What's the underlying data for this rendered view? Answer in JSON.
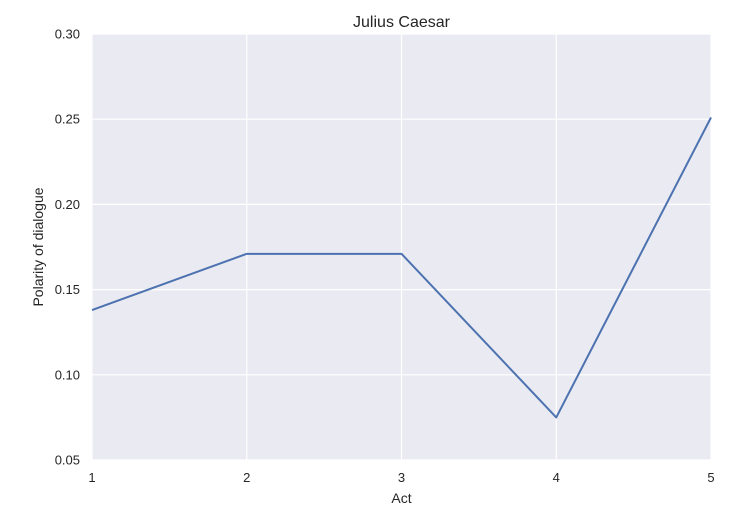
{
  "chart_data": {
    "type": "line",
    "title": "Julius Caesar",
    "xlabel": "Act",
    "ylabel": "Polarity of dialogue",
    "x": [
      1,
      2,
      3,
      4,
      5
    ],
    "series": [
      {
        "values": [
          0.138,
          0.171,
          0.171,
          0.075,
          0.251
        ],
        "color": "#4c72b0"
      }
    ],
    "xlim": [
      1,
      5
    ],
    "ylim": [
      0.05,
      0.3
    ],
    "xticks": [
      "1",
      "2",
      "3",
      "4",
      "5"
    ],
    "yticks": [
      "0.05",
      "0.10",
      "0.15",
      "0.20",
      "0.25",
      "0.30"
    ],
    "grid": true,
    "background_color": "#eaeaf2",
    "grid_color": "#ffffff"
  }
}
